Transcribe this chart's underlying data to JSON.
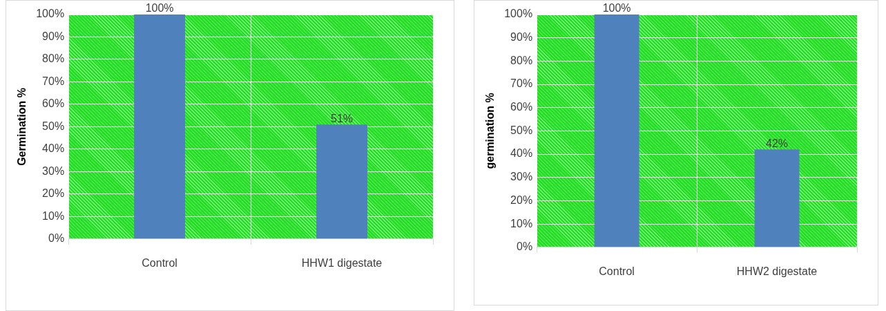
{
  "chart_data": [
    {
      "type": "bar",
      "ylabel": "Germination %",
      "categories": [
        "Control",
        "HHW1 digestate"
      ],
      "values": [
        100,
        51
      ],
      "value_labels": [
        "100%",
        "51%"
      ],
      "color": "#4f81bd",
      "ylim": [
        0,
        100
      ],
      "yticks": [
        {
          "value": 0,
          "label": "0%"
        },
        {
          "value": 10,
          "label": "10%"
        },
        {
          "value": 20,
          "label": "20%"
        },
        {
          "value": 30,
          "label": "30%"
        },
        {
          "value": 40,
          "label": "40%"
        },
        {
          "value": 50,
          "label": "50%"
        },
        {
          "value": 60,
          "label": "60%"
        },
        {
          "value": 70,
          "label": "70%"
        },
        {
          "value": 80,
          "label": "80%"
        },
        {
          "value": 90,
          "label": "90%"
        },
        {
          "value": 100,
          "label": "100%"
        }
      ],
      "grid": true
    },
    {
      "type": "bar",
      "ylabel": "germination %",
      "categories": [
        "Control",
        "HHW2 digestate"
      ],
      "values": [
        100,
        42
      ],
      "value_labels": [
        "100%",
        "42%"
      ],
      "color": "#4f81bd",
      "ylim": [
        0,
        100
      ],
      "yticks": [
        {
          "value": 0,
          "label": "0%"
        },
        {
          "value": 10,
          "label": "10%"
        },
        {
          "value": 20,
          "label": "20%"
        },
        {
          "value": 30,
          "label": "30%"
        },
        {
          "value": 40,
          "label": "40%"
        },
        {
          "value": 50,
          "label": "50%"
        },
        {
          "value": 60,
          "label": "60%"
        },
        {
          "value": 70,
          "label": "70%"
        },
        {
          "value": 80,
          "label": "80%"
        },
        {
          "value": 90,
          "label": "90%"
        },
        {
          "value": 100,
          "label": "100%"
        }
      ],
      "grid": true
    }
  ]
}
